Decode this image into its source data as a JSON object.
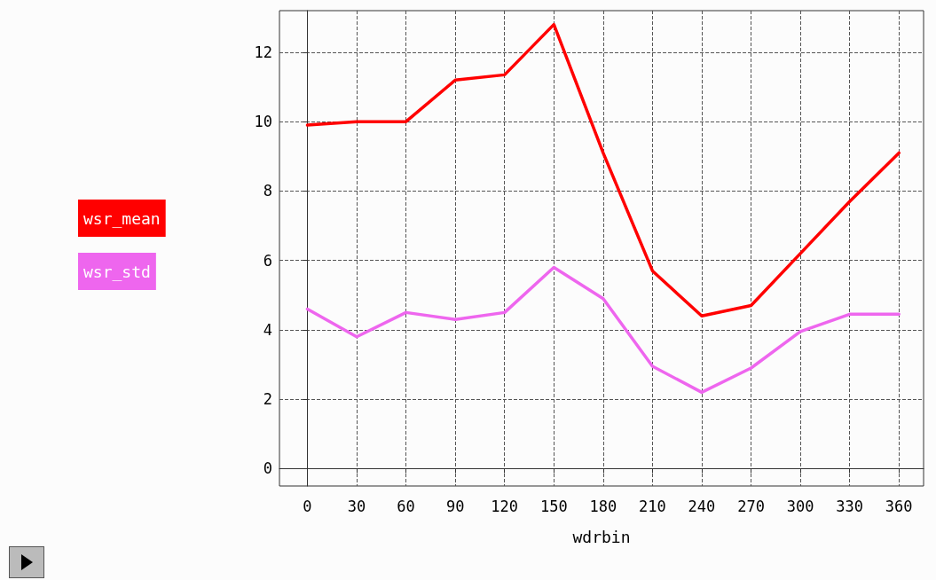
{
  "chart_data": {
    "type": "line",
    "xlabel": "wdrbin",
    "x": [
      0,
      30,
      60,
      90,
      120,
      150,
      180,
      210,
      240,
      270,
      300,
      330,
      360
    ],
    "series": [
      {
        "name": "wsr_mean",
        "color": "#ff0000",
        "values": [
          9.9,
          10.0,
          10.0,
          11.2,
          11.35,
          12.8,
          9.1,
          5.7,
          4.4,
          4.7,
          6.2,
          7.7,
          9.1
        ]
      },
      {
        "name": "wsr_std",
        "color": "#ee66ee",
        "values": [
          4.6,
          3.8,
          4.5,
          4.3,
          4.5,
          5.8,
          4.9,
          2.95,
          2.2,
          2.9,
          3.95,
          4.45,
          4.45
        ]
      }
    ],
    "xlim": [
      -17,
      375
    ],
    "xticks": [
      0,
      30,
      60,
      90,
      120,
      150,
      180,
      210,
      240,
      270,
      300,
      330,
      360
    ],
    "ylim": [
      -0.5,
      13.2
    ],
    "yticks": [
      0,
      2,
      4,
      6,
      8,
      10,
      12
    ],
    "grid": true,
    "legend": "left",
    "line_style": "solid",
    "marker": "none"
  }
}
